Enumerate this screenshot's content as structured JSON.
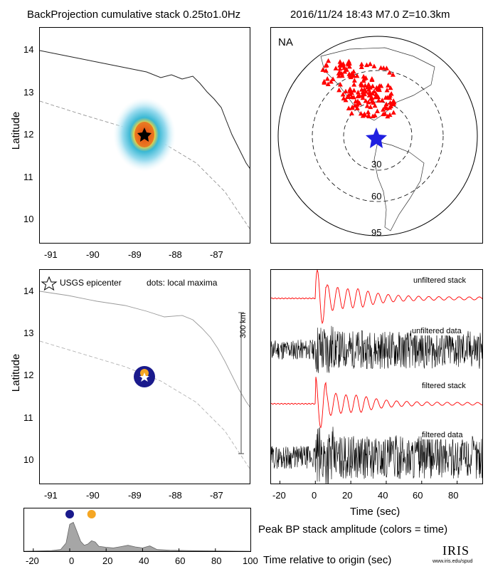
{
  "header": {
    "title": "BackProjection cumulative stack 0.25to1.0Hz",
    "event_info": "2016/11/24 18:43   M7.0  Z=10.3km"
  },
  "top_map": {
    "ylabel": "Latitude",
    "xticks": [
      "-91",
      "-90",
      "-89",
      "-88",
      "-87"
    ],
    "yticks": [
      "14",
      "13",
      "12",
      "11",
      "10"
    ]
  },
  "globe": {
    "region_label": "NA",
    "ring_labels": [
      "30",
      "60",
      "95"
    ],
    "station_color": "#ff0000",
    "epicenter_color": "#1f1fe0"
  },
  "bottom_map": {
    "ylabel": "Latitude",
    "legend_star": "USGS epicenter",
    "legend_dots": "dots: local maxima",
    "scale_label": "300 km",
    "xticks": [
      "-91",
      "-90",
      "-89",
      "-88",
      "-87"
    ],
    "yticks": [
      "14",
      "13",
      "12",
      "11",
      "10"
    ]
  },
  "traces": {
    "labels": [
      "unfiltered stack",
      "unfiltered data",
      "filtered stack",
      "filtered data"
    ],
    "xlabel": "Time (sec)",
    "xticks": [
      "-20",
      "0",
      "20",
      "40",
      "60",
      "80"
    ]
  },
  "amplitude_panel": {
    "caption": "Peak BP stack amplitude (colors = time)",
    "xlabel": "Time relative to origin (sec)",
    "xticks": [
      "-20",
      "0",
      "20",
      "40",
      "60",
      "80",
      "100"
    ]
  },
  "logo": {
    "name": "IRIS",
    "url": "www.iris.edu/spud"
  },
  "chart_data": [
    {
      "type": "heatmap",
      "panel": "cumulative stack map",
      "xlim": [
        -91.6,
        -86.4
      ],
      "ylim": [
        9.3,
        14.6
      ],
      "peak": {
        "lon": -88.8,
        "lat": 12.0
      },
      "epicenter": {
        "lon": -88.8,
        "lat": 12.0
      }
    },
    {
      "type": "scatter",
      "panel": "local maxima map",
      "xlim": [
        -91.6,
        -86.4
      ],
      "ylim": [
        9.3,
        14.6
      ],
      "points": [
        {
          "lon": -88.8,
          "lat": 12.0,
          "time": 0,
          "color": "#1a1a8c"
        },
        {
          "lon": -88.8,
          "lat": 12.05,
          "time": 11,
          "color": "#f5a623"
        }
      ],
      "epicenter": {
        "lon": -88.8,
        "lat": 12.0
      }
    },
    {
      "type": "line",
      "panel": "seismogram traces",
      "xlim": [
        -25,
        95
      ],
      "series": [
        {
          "name": "unfiltered stack",
          "color": "#ff0000"
        },
        {
          "name": "unfiltered data",
          "color": "#000000"
        },
        {
          "name": "filtered stack",
          "color": "#ff0000"
        },
        {
          "name": "filtered data",
          "color": "#000000"
        }
      ]
    },
    {
      "type": "area",
      "panel": "peak BP stack amplitude",
      "xlim": [
        -25,
        100
      ],
      "x": [
        -25,
        -10,
        -5,
        -2,
        0,
        2,
        4,
        6,
        8,
        10,
        12,
        14,
        16,
        20,
        24,
        28,
        32,
        36,
        40,
        44,
        48,
        55,
        65,
        80,
        100
      ],
      "values": [
        0.0,
        0.02,
        0.05,
        0.25,
        0.82,
        0.88,
        0.6,
        0.3,
        0.18,
        0.22,
        0.32,
        0.28,
        0.15,
        0.12,
        0.1,
        0.14,
        0.18,
        0.13,
        0.1,
        0.16,
        0.05,
        0.03,
        0.02,
        0.01,
        0.0
      ],
      "ylim": [
        0,
        1
      ],
      "markers": [
        {
          "x": 0,
          "value": 0.95,
          "color": "#1a1a8c"
        },
        {
          "x": 12,
          "value": 0.95,
          "color": "#f5a623"
        }
      ]
    }
  ]
}
